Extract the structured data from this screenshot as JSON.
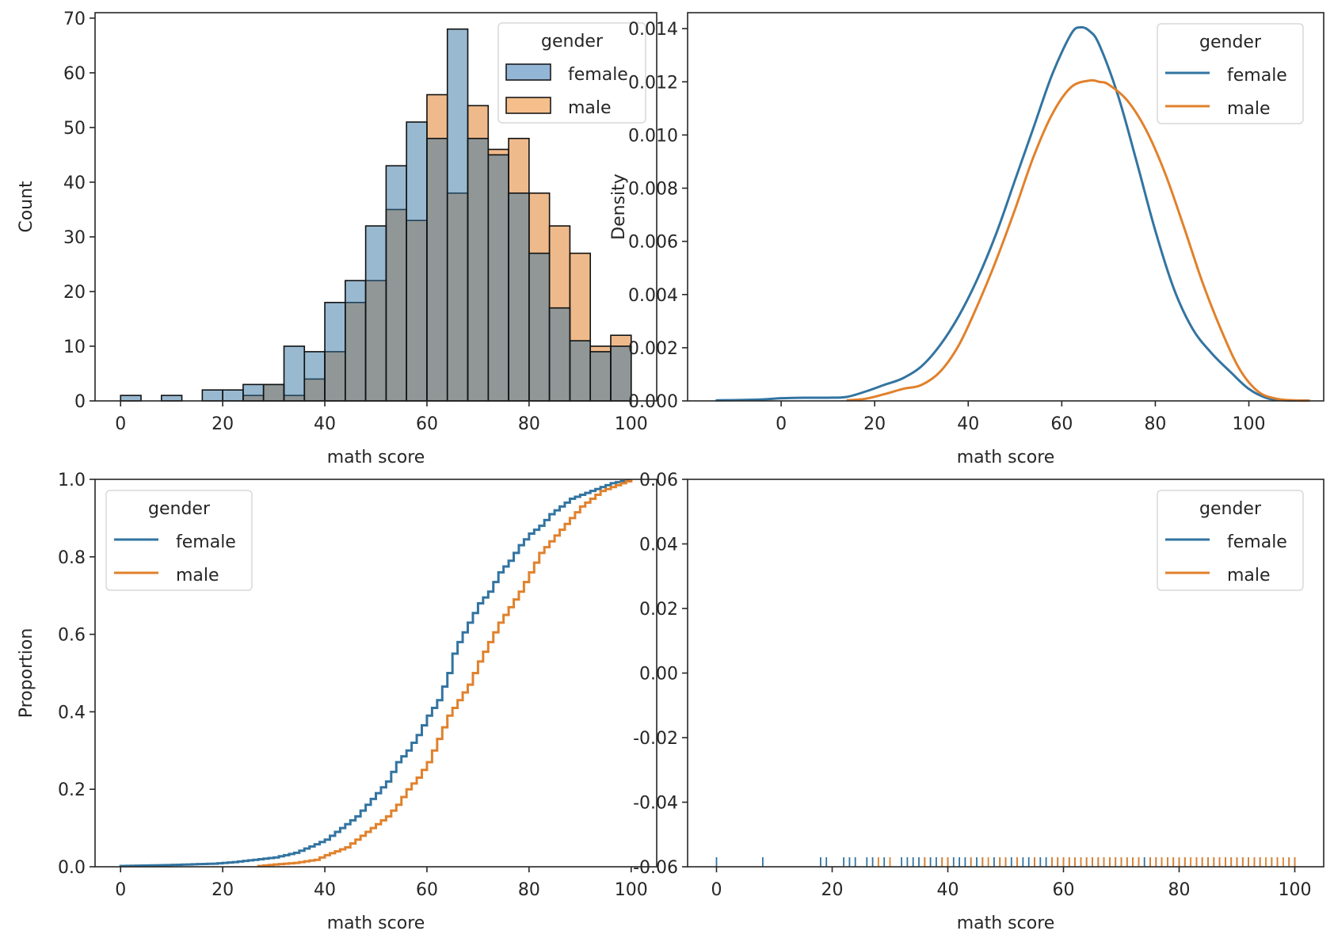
{
  "colors": {
    "female": "#3274a1",
    "male": "#e1812c",
    "female_fill": "#93b5d6",
    "male_fill": "#f4bf8a",
    "overlap_fill": "#8e989a",
    "axis": "#262626",
    "legend_border": "#d9d9d9"
  },
  "chart_data": [
    {
      "id": "histogram",
      "type": "bar",
      "title": "",
      "xlabel": "math score",
      "ylabel": "Count",
      "xlim": [
        -5,
        105
      ],
      "ylim": [
        0,
        71
      ],
      "xticks": [
        0,
        20,
        40,
        60,
        80,
        100
      ],
      "yticks": [
        0,
        10,
        20,
        30,
        40,
        50,
        60,
        70
      ],
      "bin_width": 4,
      "bin_starts": [
        0,
        4,
        8,
        12,
        16,
        20,
        24,
        28,
        32,
        36,
        40,
        44,
        48,
        52,
        56,
        60,
        64,
        68,
        72,
        76,
        80,
        84,
        88,
        92,
        96
      ],
      "series": [
        {
          "name": "female",
          "values": [
            1,
            0,
            1,
            0,
            2,
            2,
            3,
            3,
            10,
            9,
            18,
            22,
            32,
            43,
            51,
            48,
            68,
            48,
            45,
            38,
            27,
            17,
            11,
            9,
            10
          ]
        },
        {
          "name": "male",
          "values": [
            0,
            0,
            0,
            0,
            0,
            0,
            1,
            3,
            1,
            4,
            9,
            18,
            22,
            35,
            33,
            56,
            38,
            54,
            46,
            48,
            38,
            32,
            27,
            10,
            12
          ]
        }
      ],
      "legend": {
        "title": "gender",
        "entries": [
          "female",
          "male"
        ],
        "placement": "upper-right"
      },
      "grid": false
    },
    {
      "id": "kde",
      "type": "line",
      "title": "",
      "xlabel": "math score",
      "ylabel": "Density",
      "xlim": [
        -20,
        116
      ],
      "ylim": [
        0,
        0.0146
      ],
      "xticks": [
        0,
        20,
        40,
        60,
        80,
        100
      ],
      "yticks": [
        0.0,
        0.002,
        0.004,
        0.006,
        0.008,
        0.01,
        0.012,
        0.014
      ],
      "ytick_labels": [
        "0.000",
        "0.002",
        "0.004",
        "0.006",
        "0.008",
        "0.010",
        "0.012",
        "0.014"
      ],
      "series": [
        {
          "name": "female",
          "x": [
            -14,
            -5,
            0,
            5,
            10,
            14,
            18,
            22,
            26,
            30,
            34,
            38,
            42,
            46,
            50,
            54,
            58,
            62,
            64,
            66,
            68,
            72,
            76,
            80,
            84,
            88,
            92,
            96,
            100,
            104,
            108,
            113
          ],
          "y": [
            2e-05,
            5e-05,
            0.0001,
            0.00012,
            0.00012,
            0.00015,
            0.00035,
            0.0006,
            0.00085,
            0.0013,
            0.0021,
            0.0032,
            0.0046,
            0.0063,
            0.0083,
            0.0103,
            0.0123,
            0.0138,
            0.01405,
            0.0139,
            0.0134,
            0.0115,
            0.009,
            0.0064,
            0.0042,
            0.0027,
            0.0018,
            0.0011,
            0.00045,
            0.0001,
            2e-05,
            1e-05
          ]
        },
        {
          "name": "male",
          "x": [
            14,
            18,
            22,
            26,
            30,
            34,
            38,
            42,
            46,
            50,
            54,
            58,
            62,
            66,
            68,
            70,
            74,
            78,
            82,
            86,
            90,
            94,
            98,
            102,
            106,
            110,
            113
          ],
          "y": [
            2e-05,
            8e-05,
            0.00025,
            0.00045,
            0.0006,
            0.0011,
            0.0021,
            0.0036,
            0.0053,
            0.0072,
            0.0092,
            0.0108,
            0.0118,
            0.01205,
            0.012,
            0.0119,
            0.0113,
            0.0102,
            0.0086,
            0.0066,
            0.0045,
            0.0027,
            0.0012,
            0.00035,
            8e-05,
            2e-05,
            1e-05
          ]
        }
      ],
      "legend": {
        "title": "gender",
        "entries": [
          "female",
          "male"
        ],
        "placement": "upper-right"
      },
      "grid": false
    },
    {
      "id": "ecdf",
      "type": "line",
      "title": "",
      "xlabel": "math score",
      "ylabel": "Proportion",
      "xlim": [
        -5,
        105
      ],
      "ylim": [
        0,
        1.0
      ],
      "xticks": [
        0,
        20,
        40,
        60,
        80,
        100
      ],
      "yticks": [
        0.0,
        0.2,
        0.4,
        0.6,
        0.8,
        1.0
      ],
      "ytick_labels": [
        "0.0",
        "0.2",
        "0.4",
        "0.6",
        "0.8",
        "1.0"
      ],
      "series": [
        {
          "name": "female",
          "x": [
            0,
            8,
            18,
            22,
            26,
            30,
            34,
            38,
            40,
            42,
            44,
            46,
            48,
            50,
            52,
            54,
            56,
            58,
            60,
            62,
            64,
            65,
            66,
            68,
            70,
            72,
            74,
            76,
            78,
            80,
            82,
            84,
            86,
            88,
            90,
            92,
            94,
            96,
            98,
            100
          ],
          "y": [
            0.002,
            0.004,
            0.008,
            0.012,
            0.018,
            0.024,
            0.036,
            0.058,
            0.07,
            0.09,
            0.11,
            0.13,
            0.16,
            0.19,
            0.22,
            0.27,
            0.3,
            0.34,
            0.39,
            0.43,
            0.5,
            0.55,
            0.58,
            0.63,
            0.68,
            0.71,
            0.76,
            0.79,
            0.83,
            0.86,
            0.88,
            0.91,
            0.93,
            0.95,
            0.96,
            0.97,
            0.98,
            0.99,
            0.995,
            1.0
          ]
        },
        {
          "name": "male",
          "x": [
            27,
            30,
            34,
            38,
            40,
            42,
            44,
            46,
            48,
            50,
            52,
            54,
            56,
            58,
            60,
            62,
            64,
            66,
            68,
            70,
            72,
            74,
            76,
            78,
            80,
            82,
            84,
            86,
            88,
            90,
            92,
            94,
            96,
            98,
            100
          ],
          "y": [
            0.002,
            0.006,
            0.01,
            0.018,
            0.03,
            0.04,
            0.05,
            0.07,
            0.09,
            0.11,
            0.13,
            0.16,
            0.2,
            0.23,
            0.27,
            0.33,
            0.39,
            0.43,
            0.47,
            0.53,
            0.58,
            0.63,
            0.67,
            0.71,
            0.76,
            0.81,
            0.84,
            0.87,
            0.9,
            0.93,
            0.95,
            0.97,
            0.98,
            0.99,
            1.0
          ]
        }
      ],
      "legend": {
        "title": "gender",
        "entries": [
          "female",
          "male"
        ],
        "placement": "upper-left"
      },
      "grid": false
    },
    {
      "id": "rug",
      "type": "scatter",
      "title": "",
      "xlabel": "math score",
      "ylabel": "",
      "xlim": [
        -5,
        105
      ],
      "ylim": [
        -0.06,
        0.06
      ],
      "xticks": [
        0,
        20,
        40,
        60,
        80,
        100
      ],
      "yticks": [
        -0.06,
        -0.04,
        -0.02,
        0.0,
        0.02,
        0.04,
        0.06
      ],
      "ytick_labels": [
        "-0.06",
        "-0.04",
        "-0.02",
        "0.00",
        "0.02",
        "0.04",
        "0.06"
      ],
      "series": [
        {
          "name": "female",
          "x": [
            0,
            8,
            18,
            19,
            22,
            23,
            24,
            26,
            27,
            29,
            32,
            33,
            34,
            35,
            36,
            37,
            38,
            39,
            40,
            41,
            42,
            43,
            44,
            45,
            46,
            48,
            49,
            50,
            51,
            52,
            53,
            54,
            55,
            56,
            57,
            58,
            59,
            60,
            61,
            62,
            63,
            64,
            65,
            66,
            67,
            68,
            69,
            70,
            71,
            72,
            73,
            74,
            75,
            76,
            77,
            78,
            79,
            80,
            81,
            83,
            84,
            85,
            86,
            87,
            88,
            89,
            90,
            91,
            92,
            93,
            94,
            96,
            97,
            99,
            100
          ]
        },
        {
          "name": "male",
          "x": [
            28,
            30,
            36,
            39,
            40,
            44,
            46,
            47,
            49,
            50,
            52,
            55,
            58,
            59,
            60,
            61,
            62,
            63,
            64,
            65,
            66,
            67,
            68,
            69,
            70,
            71,
            72,
            73,
            75,
            76,
            77,
            78,
            79,
            80,
            81,
            82,
            83,
            84,
            85,
            86,
            87,
            88,
            89,
            90,
            91,
            92,
            93,
            94,
            95,
            96,
            97,
            98,
            99,
            100
          ]
        }
      ],
      "legend": {
        "title": "gender",
        "entries": [
          "female",
          "male"
        ],
        "placement": "upper-right"
      },
      "grid": false
    }
  ]
}
